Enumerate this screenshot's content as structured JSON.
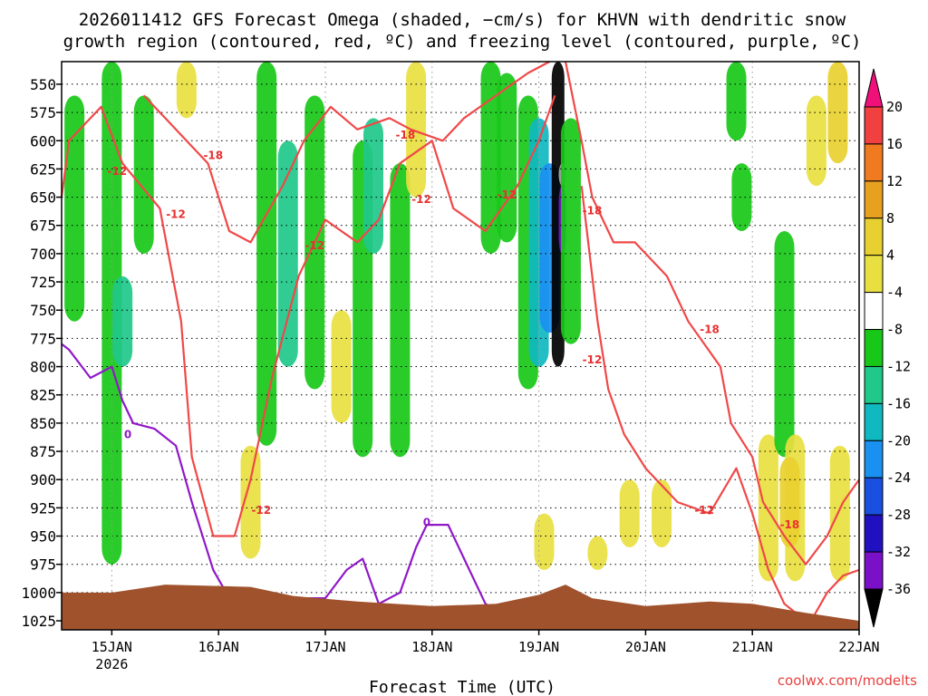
{
  "chart_data": {
    "type": "heatmap",
    "title_line1": "2026011412 GFS Forecast Omega (shaded, −cm/s) for KHVN with dendritic snow",
    "title_line2": "growth region (contoured, red, ºC) and freezing level (contoured, purple, ºC)",
    "xlabel": "Forecast Time (UTC)",
    "x_ticks": [
      {
        "day": 15,
        "label": "15JAN",
        "sub": "2026"
      },
      {
        "day": 16,
        "label": "16JAN"
      },
      {
        "day": 17,
        "label": "17JAN"
      },
      {
        "day": 18,
        "label": "18JAN"
      },
      {
        "day": 19,
        "label": "19JAN"
      },
      {
        "day": 20,
        "label": "20JAN"
      },
      {
        "day": 21,
        "label": "21JAN"
      },
      {
        "day": 22,
        "label": "22JAN"
      }
    ],
    "xlim": [
      14.53,
      22.0
    ],
    "y_ticks": [
      "550",
      "575",
      "600",
      "625",
      "650",
      "675",
      "700",
      "725",
      "750",
      "775",
      "800",
      "825",
      "850",
      "875",
      "900",
      "925",
      "950",
      "975",
      "1000",
      "1025"
    ],
    "ylim_hPa": [
      530,
      1033
    ],
    "colorbar": {
      "levels": [
        "20",
        "16",
        "12",
        "8",
        "4",
        "-4",
        "-8",
        "-12",
        "-16",
        "-20",
        "-24",
        "-28",
        "-32",
        "-36"
      ],
      "colors": [
        "#f0107a",
        "#f04040",
        "#f07a20",
        "#e8a020",
        "#e8d030",
        "#e8e040",
        "#ffffff",
        "#18c818",
        "#20c88a",
        "#10b8c0",
        "#1a90f0",
        "#1a50e0",
        "#2010c0",
        "#7a10c8",
        "#a020d0",
        "#aaaaaa",
        "#000000"
      ]
    },
    "omega_shading": [
      {
        "t": 14.65,
        "p0": 560,
        "p1": 760,
        "level": "-4"
      },
      {
        "t": 15.0,
        "p0": 530,
        "p1": 975,
        "level": "-8"
      },
      {
        "t": 15.1,
        "p0": 720,
        "p1": 800,
        "level": "-12"
      },
      {
        "t": 15.3,
        "p0": 560,
        "p1": 700,
        "level": "-4"
      },
      {
        "t": 15.7,
        "p0": 530,
        "p1": 580,
        "level": "4"
      },
      {
        "t": 16.3,
        "p0": 870,
        "p1": 970,
        "level": "4"
      },
      {
        "t": 16.45,
        "p0": 530,
        "p1": 870,
        "level": "-8"
      },
      {
        "t": 16.65,
        "p0": 600,
        "p1": 800,
        "level": "-12"
      },
      {
        "t": 16.9,
        "p0": 560,
        "p1": 820,
        "level": "-8"
      },
      {
        "t": 17.15,
        "p0": 750,
        "p1": 850,
        "level": "4"
      },
      {
        "t": 17.35,
        "p0": 600,
        "p1": 880,
        "level": "-8"
      },
      {
        "t": 17.45,
        "p0": 580,
        "p1": 700,
        "level": "-12"
      },
      {
        "t": 17.7,
        "p0": 620,
        "p1": 880,
        "level": "-8"
      },
      {
        "t": 17.85,
        "p0": 530,
        "p1": 650,
        "level": "4"
      },
      {
        "t": 18.55,
        "p0": 530,
        "p1": 700,
        "level": "-8"
      },
      {
        "t": 18.7,
        "p0": 540,
        "p1": 690,
        "level": "-8"
      },
      {
        "t": 18.9,
        "p0": 560,
        "p1": 820,
        "level": "-8"
      },
      {
        "t": 19.0,
        "p0": 580,
        "p1": 800,
        "level": "-16"
      },
      {
        "t": 19.1,
        "p0": 620,
        "p1": 770,
        "level": "-20"
      },
      {
        "t": 19.18,
        "p0": 530,
        "p1": 800,
        "level": "-36"
      },
      {
        "t": 19.22,
        "p0": 620,
        "p1": 640,
        "level": "-32"
      },
      {
        "t": 19.22,
        "p0": 640,
        "p1": 700,
        "level": "-28"
      },
      {
        "t": 19.3,
        "p0": 580,
        "p1": 780,
        "level": "-8"
      },
      {
        "t": 19.05,
        "p0": 930,
        "p1": 980,
        "level": "4"
      },
      {
        "t": 19.55,
        "p0": 950,
        "p1": 980,
        "level": "4"
      },
      {
        "t": 19.85,
        "p0": 900,
        "p1": 960,
        "level": "4"
      },
      {
        "t": 20.15,
        "p0": 900,
        "p1": 960,
        "level": "4"
      },
      {
        "t": 20.85,
        "p0": 530,
        "p1": 600,
        "level": "-8"
      },
      {
        "t": 20.9,
        "p0": 620,
        "p1": 680,
        "level": "-8"
      },
      {
        "t": 21.15,
        "p0": 860,
        "p1": 990,
        "level": "4"
      },
      {
        "t": 21.3,
        "p0": 680,
        "p1": 880,
        "level": "-8"
      },
      {
        "t": 21.4,
        "p0": 860,
        "p1": 990,
        "level": "4"
      },
      {
        "t": 21.35,
        "p0": 880,
        "p1": 960,
        "level": "8"
      },
      {
        "t": 21.6,
        "p0": 560,
        "p1": 640,
        "level": "4"
      },
      {
        "t": 21.8,
        "p0": 530,
        "p1": 620,
        "level": "8"
      },
      {
        "t": 21.82,
        "p0": 870,
        "p1": 990,
        "level": "4"
      }
    ],
    "dgz_contours": [
      {
        "name": "-12 (upper)",
        "value": "-12",
        "points": [
          [
            14.53,
            650
          ],
          [
            14.6,
            600
          ],
          [
            14.9,
            570
          ],
          [
            15.1,
            620
          ],
          [
            15.45,
            660
          ],
          [
            15.65,
            760
          ],
          [
            15.75,
            880
          ],
          [
            15.95,
            950
          ],
          [
            16.15,
            950
          ],
          [
            16.3,
            900
          ],
          [
            16.5,
            810
          ],
          [
            16.75,
            720
          ],
          [
            17.0,
            670
          ],
          [
            17.3,
            690
          ],
          [
            17.5,
            670
          ],
          [
            17.7,
            620
          ],
          [
            18.0,
            600
          ],
          [
            18.2,
            660
          ],
          [
            18.5,
            680
          ],
          [
            18.8,
            640
          ],
          [
            19.0,
            600
          ],
          [
            19.15,
            560
          ]
        ]
      },
      {
        "name": "-18",
        "value": "-18",
        "points": [
          [
            15.3,
            560
          ],
          [
            15.5,
            580
          ],
          [
            15.7,
            600
          ],
          [
            15.9,
            620
          ],
          [
            16.1,
            680
          ],
          [
            16.3,
            690
          ],
          [
            16.6,
            640
          ],
          [
            16.8,
            600
          ],
          [
            17.05,
            570
          ],
          [
            17.3,
            590
          ],
          [
            17.6,
            580
          ],
          [
            17.8,
            590
          ],
          [
            18.1,
            600
          ],
          [
            18.3,
            580
          ],
          [
            18.6,
            560
          ],
          [
            18.9,
            540
          ],
          [
            19.1,
            530
          ]
        ]
      },
      {
        "name": "-18 (right)",
        "value": "-18",
        "points": [
          [
            19.25,
            530
          ],
          [
            19.4,
            600
          ],
          [
            19.5,
            650
          ],
          [
            19.7,
            690
          ],
          [
            19.9,
            690
          ],
          [
            20.2,
            720
          ],
          [
            20.4,
            760
          ],
          [
            20.55,
            780
          ],
          [
            20.7,
            800
          ],
          [
            20.8,
            850
          ],
          [
            21.0,
            880
          ],
          [
            21.1,
            920
          ],
          [
            21.3,
            950
          ],
          [
            21.5,
            975
          ],
          [
            21.7,
            950
          ],
          [
            21.85,
            920
          ],
          [
            22.0,
            900
          ]
        ]
      },
      {
        "name": "-12 (right)",
        "value": "-12",
        "points": [
          [
            19.4,
            640
          ],
          [
            19.55,
            760
          ],
          [
            19.65,
            820
          ],
          [
            19.8,
            860
          ],
          [
            20.0,
            890
          ],
          [
            20.3,
            920
          ],
          [
            20.6,
            930
          ],
          [
            20.85,
            890
          ],
          [
            21.0,
            930
          ],
          [
            21.15,
            980
          ],
          [
            21.3,
            1010
          ],
          [
            21.5,
            1025
          ]
        ]
      },
      {
        "name": "-12 (lower right)",
        "value": "-12",
        "points": [
          [
            21.55,
            1025
          ],
          [
            21.7,
            1000
          ],
          [
            21.85,
            985
          ],
          [
            22.0,
            980
          ]
        ]
      }
    ],
    "freezing_level": [
      {
        "value": "0",
        "points": [
          [
            14.53,
            780
          ],
          [
            14.6,
            785
          ],
          [
            14.8,
            810
          ],
          [
            15.0,
            800
          ],
          [
            15.1,
            830
          ],
          [
            15.2,
            850
          ],
          [
            15.4,
            855
          ],
          [
            15.6,
            870
          ],
          [
            15.75,
            920
          ],
          [
            15.95,
            980
          ],
          [
            16.1,
            1005
          ]
        ]
      },
      {
        "value": "0",
        "points": [
          [
            16.8,
            1005
          ],
          [
            17.0,
            1005
          ],
          [
            17.2,
            980
          ],
          [
            17.35,
            970
          ],
          [
            17.5,
            1010
          ],
          [
            17.7,
            1000
          ],
          [
            17.85,
            960
          ],
          [
            17.95,
            940
          ],
          [
            18.15,
            940
          ],
          [
            18.3,
            970
          ],
          [
            18.5,
            1010
          ],
          [
            18.7,
            1020
          ]
        ]
      }
    ],
    "contour_labels": [
      {
        "text": "-12",
        "t": 15.05,
        "p": 627,
        "color": "red"
      },
      {
        "text": "-18",
        "t": 15.95,
        "p": 613,
        "color": "red"
      },
      {
        "text": "-12",
        "t": 15.6,
        "p": 665,
        "color": "red"
      },
      {
        "text": "-18",
        "t": 17.75,
        "p": 595,
        "color": "red"
      },
      {
        "text": "-12",
        "t": 17.9,
        "p": 652,
        "color": "red"
      },
      {
        "text": "-12",
        "t": 18.7,
        "p": 648,
        "color": "red"
      },
      {
        "text": "-12",
        "t": 16.9,
        "p": 693,
        "color": "red"
      },
      {
        "text": "-18",
        "t": 19.5,
        "p": 662,
        "color": "red"
      },
      {
        "text": "-12",
        "t": 16.4,
        "p": 927,
        "color": "red"
      },
      {
        "text": "-12",
        "t": 19.5,
        "p": 794,
        "color": "red"
      },
      {
        "text": "-18",
        "t": 20.6,
        "p": 767,
        "color": "red"
      },
      {
        "text": "-12",
        "t": 20.55,
        "p": 927,
        "color": "red"
      },
      {
        "text": "-18",
        "t": 21.35,
        "p": 940,
        "color": "red"
      },
      {
        "text": "0",
        "t": 15.15,
        "p": 860,
        "color": "purple"
      },
      {
        "text": "0",
        "t": 17.95,
        "p": 938,
        "color": "purple"
      }
    ],
    "ground_surface": [
      [
        14.53,
        1000
      ],
      [
        15.0,
        1000
      ],
      [
        15.5,
        993
      ],
      [
        16.3,
        995
      ],
      [
        16.7,
        1003
      ],
      [
        17.3,
        1008
      ],
      [
        18.0,
        1012
      ],
      [
        18.6,
        1010
      ],
      [
        19.0,
        1002
      ],
      [
        19.25,
        993
      ],
      [
        19.5,
        1005
      ],
      [
        20.0,
        1012
      ],
      [
        20.6,
        1008
      ],
      [
        21.0,
        1010
      ],
      [
        21.5,
        1018
      ],
      [
        22.0,
        1025
      ]
    ],
    "watermark": "coolwx.com/modelts"
  }
}
